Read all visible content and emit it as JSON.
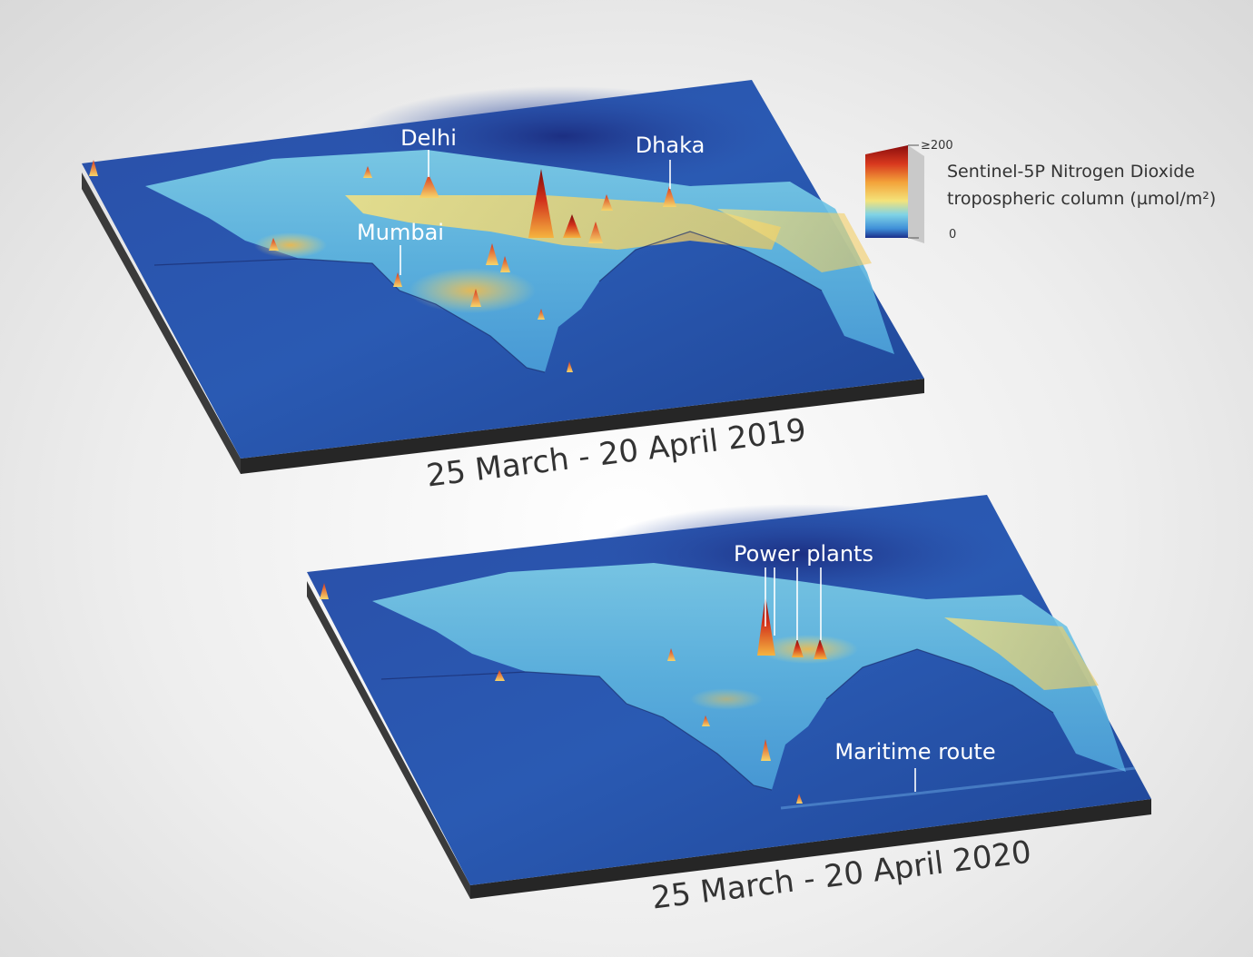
{
  "legend": {
    "title_line1": "Sentinel-5P Nitrogen Dioxide",
    "title_line2": "tropospheric column (µmol/m²)",
    "max_label": "≥200",
    "min_label": "0",
    "scale_min": 0,
    "scale_max": 200,
    "colors": [
      "#1b2f8a",
      "#3f8fd8",
      "#7fd3e6",
      "#f4e37a",
      "#f3a33a",
      "#d8381e",
      "#8a0d0d"
    ]
  },
  "panels": [
    {
      "period": "25 March - 20 April 2019",
      "labels": [
        "Delhi",
        "Dhaka",
        "Mumbai"
      ]
    },
    {
      "period": "25 March - 20 April 2020",
      "labels": [
        "Power plants",
        "Maritime route"
      ]
    }
  ]
}
